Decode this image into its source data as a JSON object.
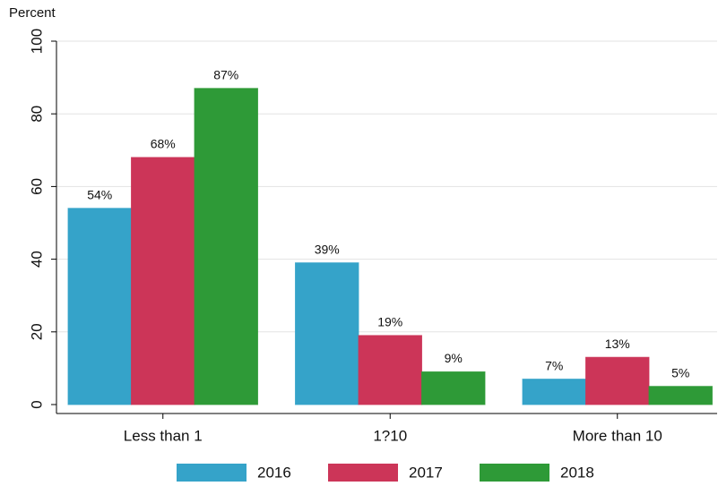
{
  "chart_data": {
    "type": "bar",
    "y_label": "Percent",
    "categories": [
      "Less than 1",
      "1?10",
      "More than 10"
    ],
    "series": [
      {
        "name": "2016",
        "color": "#35a3c9",
        "values": [
          54,
          39,
          7
        ],
        "value_labels": [
          "54%",
          "39%",
          "7%"
        ]
      },
      {
        "name": "2017",
        "color": "#cc3558",
        "values": [
          68,
          19,
          13
        ],
        "value_labels": [
          "68%",
          "19%",
          "13%"
        ]
      },
      {
        "name": "2018",
        "color": "#2e9a37",
        "values": [
          87,
          9,
          5
        ],
        "value_labels": [
          "87%",
          "9%",
          "5%"
        ]
      }
    ],
    "ylim": [
      0,
      100
    ],
    "yticks": [
      0,
      20,
      40,
      60,
      80,
      100
    ],
    "grid": true,
    "legend": "bottom"
  }
}
